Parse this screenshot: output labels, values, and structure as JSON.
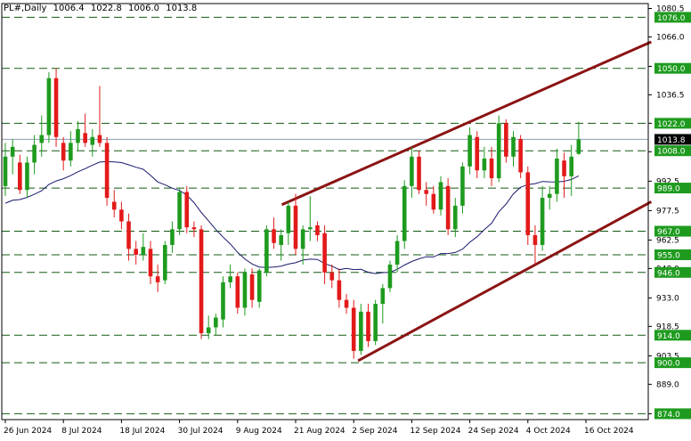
{
  "header": {
    "symbol": "PL#,Daily",
    "ohlc": [
      "1006.4",
      "1022.8",
      "1006.0",
      "1013.8"
    ]
  },
  "colors": {
    "bull": "#1e9b1e",
    "bear": "#e31a1a",
    "level_line": "#145a14",
    "channel": "#8b1414",
    "ma": "#1a1a6e",
    "price_label_bg": "#1e9b1e",
    "current_label_bg": "#000000"
  },
  "chart_data": {
    "type": "candlestick",
    "timeframe": "Daily",
    "ylim": [
      871,
      1083
    ],
    "y_ticks": [
      1080.5,
      1066.0,
      1051.0,
      1036.5,
      1022.0,
      1007.5,
      992.5,
      977.5,
      962.5,
      948.0,
      933.0,
      918.5,
      903.5,
      889.0,
      874.0
    ],
    "x_ticks": [
      "26 Jun 2024",
      "8 Jul 2024",
      "18 Jul 2024",
      "30 Jul 2024",
      "9 Aug 2024",
      "21 Aug 2024",
      "2 Sep 2024",
      "12 Sep 2024",
      "24 Sep 2024",
      "4 Oct 2024",
      "16 Oct 2024"
    ],
    "x_tick_index": [
      0,
      8,
      16,
      24,
      32,
      40,
      48,
      56,
      64,
      72,
      80
    ],
    "levels": [
      1076.0,
      1050.0,
      1022.0,
      1008.0,
      989.0,
      967.0,
      955.0,
      946.0,
      914.0,
      900.0,
      874.0
    ],
    "current_price": 1013.8,
    "candles": [
      {
        "o": 990,
        "h": 1012,
        "l": 985,
        "c": 1005
      },
      {
        "o": 1005,
        "h": 1014,
        "l": 996,
        "c": 1010
      },
      {
        "o": 1002,
        "h": 1006,
        "l": 986,
        "c": 988
      },
      {
        "o": 988,
        "h": 1005,
        "l": 984,
        "c": 1002
      },
      {
        "o": 1002,
        "h": 1016,
        "l": 996,
        "c": 1011
      },
      {
        "o": 1012,
        "h": 1026,
        "l": 1005,
        "c": 1016
      },
      {
        "o": 1016,
        "h": 1048,
        "l": 1012,
        "c": 1045
      },
      {
        "o": 1045,
        "h": 1050,
        "l": 1010,
        "c": 1015
      },
      {
        "o": 1012,
        "h": 1015,
        "l": 998,
        "c": 1003
      },
      {
        "o": 1003,
        "h": 1018,
        "l": 1000,
        "c": 1012
      },
      {
        "o": 1012,
        "h": 1023,
        "l": 1008,
        "c": 1019
      },
      {
        "o": 1017,
        "h": 1027,
        "l": 1010,
        "c": 1012
      },
      {
        "o": 1011,
        "h": 1019,
        "l": 1005,
        "c": 1015
      },
      {
        "o": 1016,
        "h": 1041,
        "l": 1010,
        "c": 1012
      },
      {
        "o": 1012,
        "h": 1015,
        "l": 980,
        "c": 984
      },
      {
        "o": 982,
        "h": 988,
        "l": 974,
        "c": 978
      },
      {
        "o": 978,
        "h": 982,
        "l": 968,
        "c": 972
      },
      {
        "o": 972,
        "h": 976,
        "l": 952,
        "c": 958
      },
      {
        "o": 958,
        "h": 962,
        "l": 950,
        "c": 955
      },
      {
        "o": 955,
        "h": 966,
        "l": 952,
        "c": 959
      },
      {
        "o": 958,
        "h": 962,
        "l": 940,
        "c": 944
      },
      {
        "o": 944,
        "h": 950,
        "l": 936,
        "c": 941
      },
      {
        "o": 942,
        "h": 962,
        "l": 940,
        "c": 960
      },
      {
        "o": 960,
        "h": 972,
        "l": 956,
        "c": 968
      },
      {
        "o": 968,
        "h": 989,
        "l": 965,
        "c": 987
      },
      {
        "o": 987,
        "h": 990,
        "l": 966,
        "c": 969
      },
      {
        "o": 969,
        "h": 972,
        "l": 964,
        "c": 968
      },
      {
        "o": 968,
        "h": 970,
        "l": 912,
        "c": 915
      },
      {
        "o": 915,
        "h": 924,
        "l": 912,
        "c": 918
      },
      {
        "o": 918,
        "h": 925,
        "l": 914,
        "c": 923
      },
      {
        "o": 922,
        "h": 944,
        "l": 918,
        "c": 941
      },
      {
        "o": 941,
        "h": 950,
        "l": 938,
        "c": 944
      },
      {
        "o": 944,
        "h": 946,
        "l": 925,
        "c": 928
      },
      {
        "o": 928,
        "h": 948,
        "l": 924,
        "c": 946
      },
      {
        "o": 945,
        "h": 948,
        "l": 928,
        "c": 932
      },
      {
        "o": 931,
        "h": 948,
        "l": 928,
        "c": 947
      },
      {
        "o": 946,
        "h": 970,
        "l": 944,
        "c": 968
      },
      {
        "o": 968,
        "h": 974,
        "l": 958,
        "c": 961
      },
      {
        "o": 960,
        "h": 968,
        "l": 952,
        "c": 965
      },
      {
        "o": 966,
        "h": 982,
        "l": 960,
        "c": 980
      },
      {
        "o": 980,
        "h": 986,
        "l": 955,
        "c": 958
      },
      {
        "o": 958,
        "h": 970,
        "l": 950,
        "c": 968
      },
      {
        "o": 968,
        "h": 985,
        "l": 962,
        "c": 969
      },
      {
        "o": 970,
        "h": 972,
        "l": 962,
        "c": 965
      },
      {
        "o": 966,
        "h": 970,
        "l": 940,
        "c": 946
      },
      {
        "o": 946,
        "h": 950,
        "l": 938,
        "c": 942
      },
      {
        "o": 942,
        "h": 948,
        "l": 928,
        "c": 932
      },
      {
        "o": 932,
        "h": 935,
        "l": 925,
        "c": 928
      },
      {
        "o": 928,
        "h": 932,
        "l": 902,
        "c": 906
      },
      {
        "o": 906,
        "h": 930,
        "l": 904,
        "c": 926
      },
      {
        "o": 926,
        "h": 930,
        "l": 908,
        "c": 911
      },
      {
        "o": 911,
        "h": 932,
        "l": 909,
        "c": 930
      },
      {
        "o": 930,
        "h": 940,
        "l": 920,
        "c": 938
      },
      {
        "o": 938,
        "h": 952,
        "l": 936,
        "c": 950
      },
      {
        "o": 950,
        "h": 965,
        "l": 946,
        "c": 962
      },
      {
        "o": 962,
        "h": 993,
        "l": 958,
        "c": 990
      },
      {
        "o": 990,
        "h": 1010,
        "l": 984,
        "c": 1005
      },
      {
        "o": 1005,
        "h": 1008,
        "l": 986,
        "c": 988
      },
      {
        "o": 988,
        "h": 992,
        "l": 980,
        "c": 986
      },
      {
        "o": 986,
        "h": 990,
        "l": 976,
        "c": 978
      },
      {
        "o": 978,
        "h": 995,
        "l": 975,
        "c": 992
      },
      {
        "o": 990,
        "h": 994,
        "l": 965,
        "c": 968
      },
      {
        "o": 968,
        "h": 984,
        "l": 964,
        "c": 980
      },
      {
        "o": 980,
        "h": 1002,
        "l": 976,
        "c": 1000
      },
      {
        "o": 1000,
        "h": 1020,
        "l": 996,
        "c": 1016
      },
      {
        "o": 1015,
        "h": 1018,
        "l": 994,
        "c": 998
      },
      {
        "o": 998,
        "h": 1010,
        "l": 994,
        "c": 1004
      },
      {
        "o": 1004,
        "h": 1010,
        "l": 990,
        "c": 994
      },
      {
        "o": 994,
        "h": 1026,
        "l": 992,
        "c": 1022
      },
      {
        "o": 1022,
        "h": 1024,
        "l": 1002,
        "c": 1005
      },
      {
        "o": 1005,
        "h": 1018,
        "l": 1000,
        "c": 1015
      },
      {
        "o": 1014,
        "h": 1016,
        "l": 994,
        "c": 997
      },
      {
        "o": 997,
        "h": 1000,
        "l": 960,
        "c": 965
      },
      {
        "o": 965,
        "h": 970,
        "l": 950,
        "c": 960
      },
      {
        "o": 960,
        "h": 990,
        "l": 957,
        "c": 984
      },
      {
        "o": 984,
        "h": 990,
        "l": 978,
        "c": 986
      },
      {
        "o": 986,
        "h": 1009,
        "l": 982,
        "c": 1004
      },
      {
        "o": 1003,
        "h": 1007,
        "l": 984,
        "c": 995
      },
      {
        "o": 995,
        "h": 1011,
        "l": 985,
        "c": 1005
      },
      {
        "o": 1006.4,
        "h": 1022.8,
        "l": 1006.0,
        "c": 1013.8
      }
    ]
  }
}
